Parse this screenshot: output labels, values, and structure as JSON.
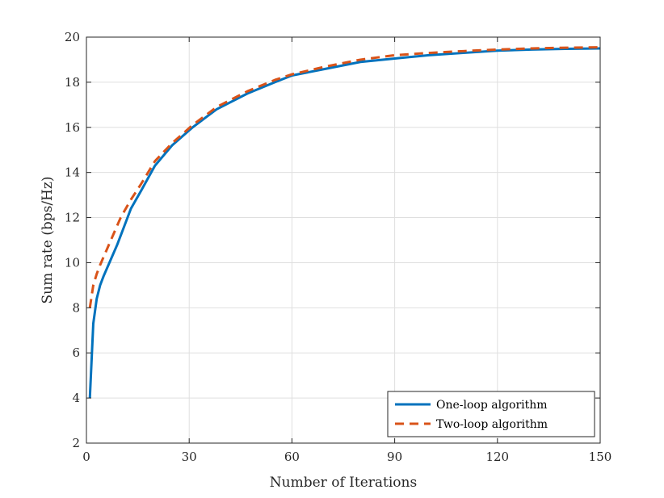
{
  "chart_data": {
    "type": "line",
    "xlabel": "Number of Iterations",
    "ylabel": "Sum rate (bps/Hz)",
    "xlim": [
      0,
      150
    ],
    "ylim": [
      2,
      20
    ],
    "xticks": [
      0,
      30,
      60,
      90,
      120,
      150
    ],
    "yticks": [
      2,
      4,
      6,
      8,
      10,
      12,
      14,
      16,
      18,
      20
    ],
    "grid": true,
    "legend_position": "bottom-right",
    "series": [
      {
        "name": "One-loop algorithm",
        "color": "#0072BD",
        "style": "solid",
        "x": [
          1,
          2,
          3,
          4,
          5,
          7,
          9,
          11,
          13,
          16,
          20,
          25,
          31,
          38,
          47,
          55,
          60,
          70,
          80,
          90,
          100,
          110,
          120,
          130,
          140,
          150
        ],
        "y": [
          4.0,
          7.3,
          8.4,
          9.0,
          9.4,
          10.1,
          10.8,
          11.6,
          12.4,
          13.2,
          14.3,
          15.2,
          16.0,
          16.8,
          17.5,
          18.0,
          18.3,
          18.6,
          18.9,
          19.05,
          19.2,
          19.3,
          19.4,
          19.45,
          19.48,
          19.5
        ]
      },
      {
        "name": "Two-loop algorithm",
        "color": "#D95319",
        "style": "dashed",
        "x": [
          1,
          2,
          3,
          4,
          6,
          8,
          10,
          13,
          16,
          20,
          25,
          31,
          38,
          47,
          55,
          60,
          70,
          80,
          90,
          100,
          110,
          120,
          130,
          140,
          150
        ],
        "y": [
          8.0,
          9.0,
          9.5,
          9.9,
          10.6,
          11.3,
          12.0,
          12.8,
          13.5,
          14.5,
          15.3,
          16.1,
          16.9,
          17.6,
          18.1,
          18.35,
          18.7,
          19.0,
          19.2,
          19.3,
          19.38,
          19.45,
          19.5,
          19.53,
          19.55
        ]
      }
    ]
  }
}
